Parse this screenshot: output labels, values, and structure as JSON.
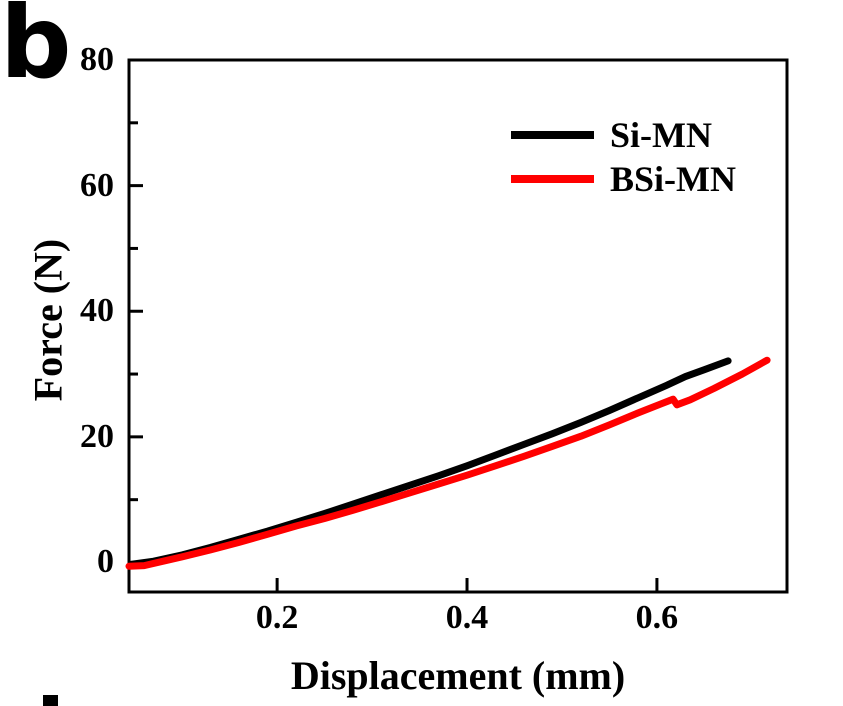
{
  "panel": {
    "label": "b"
  },
  "axes": {
    "x_label": "Displacement (mm)",
    "y_label": "Force (N)"
  },
  "legend": {
    "entries": [
      {
        "label": "Si-MN",
        "color": "#000000"
      },
      {
        "label": "BSi-MN",
        "color": "#ff0000"
      }
    ]
  },
  "chart_data": {
    "type": "line",
    "title": "",
    "xlabel": "Displacement (mm)",
    "ylabel": "Force (N)",
    "xlim": [
      0.044,
      0.737
    ],
    "ylim": [
      -4.7,
      80
    ],
    "grid": false,
    "legend_position": "upper-right-inside",
    "x_ticks": {
      "values": [
        0.2,
        0.4,
        0.6
      ],
      "labels": [
        "0.2",
        "0.4",
        "0.6"
      ]
    },
    "y_ticks": {
      "values": [
        0,
        20,
        40,
        60,
        80
      ],
      "labels": [
        "0",
        "20",
        "40",
        "60",
        "80"
      ],
      "minor": [
        10,
        30,
        50,
        70
      ]
    },
    "series": [
      {
        "name": "Si-MN",
        "color": "#000000",
        "points": [
          [
            0.046,
            -0.3
          ],
          [
            0.07,
            0.2
          ],
          [
            0.1,
            1.2
          ],
          [
            0.13,
            2.4
          ],
          [
            0.16,
            3.7
          ],
          [
            0.19,
            5.0
          ],
          [
            0.22,
            6.4
          ],
          [
            0.25,
            7.8
          ],
          [
            0.28,
            9.3
          ],
          [
            0.31,
            10.8
          ],
          [
            0.34,
            12.3
          ],
          [
            0.37,
            13.8
          ],
          [
            0.4,
            15.4
          ],
          [
            0.43,
            17.1
          ],
          [
            0.46,
            18.8
          ],
          [
            0.49,
            20.5
          ],
          [
            0.52,
            22.3
          ],
          [
            0.55,
            24.2
          ],
          [
            0.58,
            26.2
          ],
          [
            0.61,
            28.2
          ],
          [
            0.63,
            29.6
          ],
          [
            0.65,
            30.7
          ],
          [
            0.675,
            32.1
          ]
        ]
      },
      {
        "name": "BSi-MN",
        "color": "#ff0000",
        "points": [
          [
            0.044,
            -0.6
          ],
          [
            0.06,
            -0.5
          ],
          [
            0.08,
            0.2
          ],
          [
            0.1,
            0.9
          ],
          [
            0.13,
            2.0
          ],
          [
            0.16,
            3.2
          ],
          [
            0.19,
            4.5
          ],
          [
            0.22,
            5.8
          ],
          [
            0.25,
            7.0
          ],
          [
            0.28,
            8.3
          ],
          [
            0.31,
            9.7
          ],
          [
            0.34,
            11.1
          ],
          [
            0.37,
            12.5
          ],
          [
            0.4,
            13.9
          ],
          [
            0.43,
            15.4
          ],
          [
            0.46,
            16.9
          ],
          [
            0.49,
            18.5
          ],
          [
            0.52,
            20.1
          ],
          [
            0.55,
            21.9
          ],
          [
            0.58,
            23.8
          ],
          [
            0.605,
            25.3
          ],
          [
            0.617,
            26.0
          ],
          [
            0.621,
            25.1
          ],
          [
            0.635,
            25.9
          ],
          [
            0.66,
            27.7
          ],
          [
            0.69,
            30.0
          ],
          [
            0.716,
            32.2
          ]
        ]
      }
    ]
  }
}
